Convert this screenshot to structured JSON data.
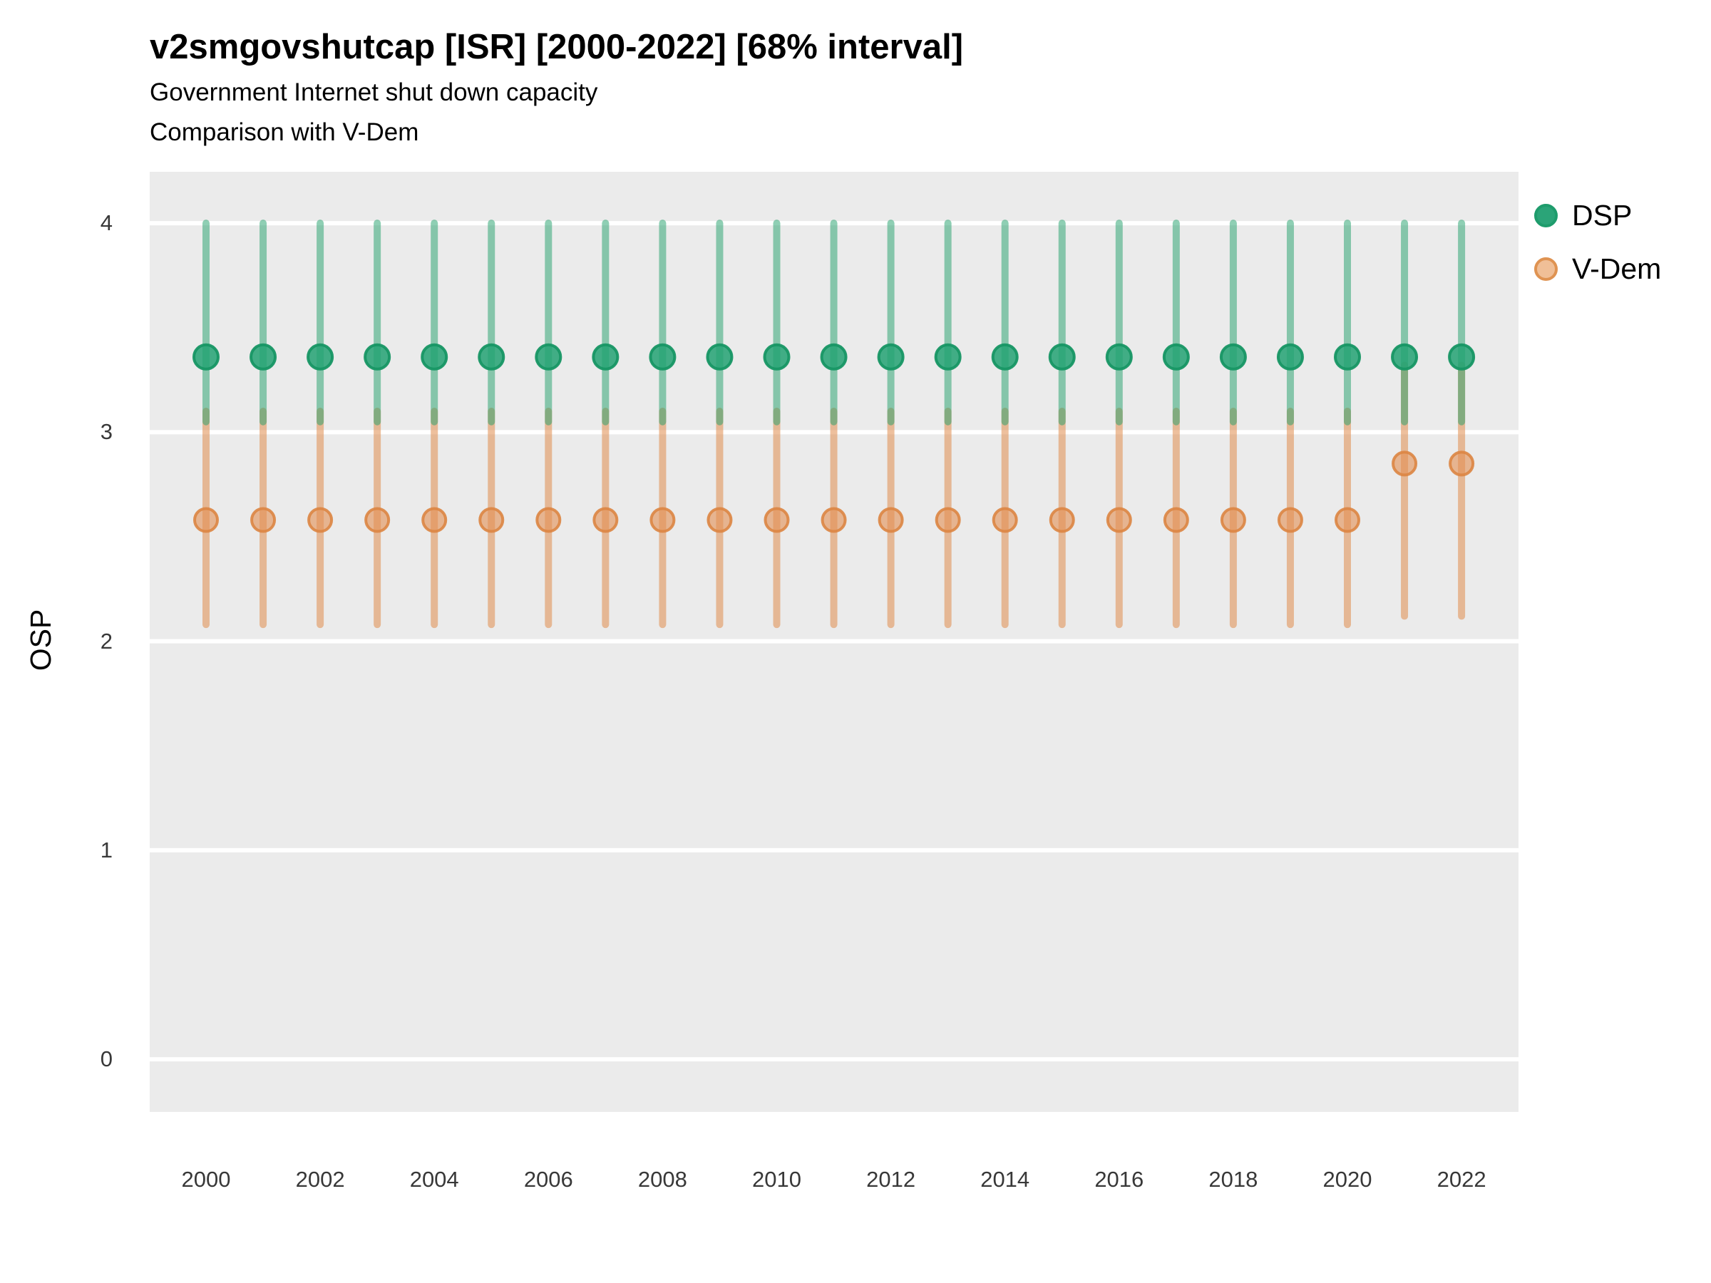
{
  "title": "v2smgovshutcap [ISR] [2000-2022] [68% interval]",
  "subtitle": "Government Internet shut down capacity",
  "subtitle2": "Comparison with V-Dem",
  "y_axis_label": "OSP",
  "legend": {
    "position": "right",
    "items": [
      {
        "label": "DSP",
        "fill": "#2ba478",
        "stroke": "#1e9c6c"
      },
      {
        "label": "V-Dem",
        "fill": "#f0bf97",
        "stroke": "#df9352"
      }
    ]
  },
  "colors": {
    "panel_background": "#ebebeb",
    "gridline": "#ffffff",
    "dsp_solid": "#23a273",
    "dsp_point_fill": "rgba(35,162,115,0.85)",
    "dsp_point_stroke": "rgba(23,150,100,0.95)",
    "dsp_interval": "rgba(32,160,105,0.5)",
    "vdem_solid": "#e08c4d",
    "vdem_point_fill": "rgba(226,144,84,0.6)",
    "vdem_point_stroke": "rgba(219,133,67,0.9)",
    "vdem_interval": "rgba(224,140,77,0.55)",
    "tick_text": "#383838",
    "title_text": "#000000"
  },
  "chart_data": {
    "type": "pointrange",
    "interval_level": "68%",
    "title": "v2smgovshutcap [ISR] [2000-2022] [68% interval]",
    "xlabel": "",
    "ylabel": "OSP",
    "grid": "horizontal-major-only",
    "legend_position": "right",
    "x": [
      2000,
      2001,
      2002,
      2003,
      2004,
      2005,
      2006,
      2007,
      2008,
      2009,
      2010,
      2011,
      2012,
      2013,
      2014,
      2015,
      2016,
      2017,
      2018,
      2019,
      2020,
      2021,
      2022
    ],
    "x_ticks": [
      2000,
      2002,
      2004,
      2006,
      2008,
      2010,
      2012,
      2014,
      2016,
      2018,
      2020,
      2022
    ],
    "x_tick_labels": [
      "2000",
      "2002",
      "2004",
      "2006",
      "2008",
      "2010",
      "2012",
      "2014",
      "2016",
      "2018",
      "2020",
      "2022"
    ],
    "y_ticks": [
      0,
      1,
      2,
      3,
      4
    ],
    "y_tick_labels": [
      "0",
      "1",
      "2",
      "3",
      "4"
    ],
    "ylim": [
      -0.25,
      4.25
    ],
    "series": [
      {
        "name": "DSP",
        "point": [
          3.36,
          3.36,
          3.36,
          3.36,
          3.36,
          3.36,
          3.36,
          3.36,
          3.36,
          3.36,
          3.36,
          3.36,
          3.36,
          3.36,
          3.36,
          3.36,
          3.36,
          3.36,
          3.36,
          3.36,
          3.36,
          3.36,
          3.36
        ],
        "lower": [
          3.05,
          3.05,
          3.05,
          3.05,
          3.05,
          3.05,
          3.05,
          3.05,
          3.05,
          3.05,
          3.05,
          3.05,
          3.05,
          3.05,
          3.05,
          3.05,
          3.05,
          3.05,
          3.05,
          3.05,
          3.05,
          3.05,
          3.05
        ],
        "upper": [
          4.0,
          4.0,
          4.0,
          4.0,
          4.0,
          4.0,
          4.0,
          4.0,
          4.0,
          4.0,
          4.0,
          4.0,
          4.0,
          4.0,
          4.0,
          4.0,
          4.0,
          4.0,
          4.0,
          4.0,
          4.0,
          4.0,
          4.0
        ]
      },
      {
        "name": "V-Dem",
        "point": [
          2.58,
          2.58,
          2.58,
          2.58,
          2.58,
          2.58,
          2.58,
          2.58,
          2.58,
          2.58,
          2.58,
          2.58,
          2.58,
          2.58,
          2.58,
          2.58,
          2.58,
          2.58,
          2.58,
          2.58,
          2.58,
          2.85,
          2.85
        ],
        "lower": [
          2.08,
          2.08,
          2.08,
          2.08,
          2.08,
          2.08,
          2.08,
          2.08,
          2.08,
          2.08,
          2.08,
          2.08,
          2.08,
          2.08,
          2.08,
          2.08,
          2.08,
          2.08,
          2.08,
          2.08,
          2.08,
          2.12,
          2.12
        ],
        "upper": [
          3.1,
          3.1,
          3.1,
          3.1,
          3.1,
          3.1,
          3.1,
          3.1,
          3.1,
          3.1,
          3.1,
          3.1,
          3.1,
          3.1,
          3.1,
          3.1,
          3.1,
          3.1,
          3.1,
          3.1,
          3.1,
          3.32,
          3.32
        ]
      }
    ]
  }
}
